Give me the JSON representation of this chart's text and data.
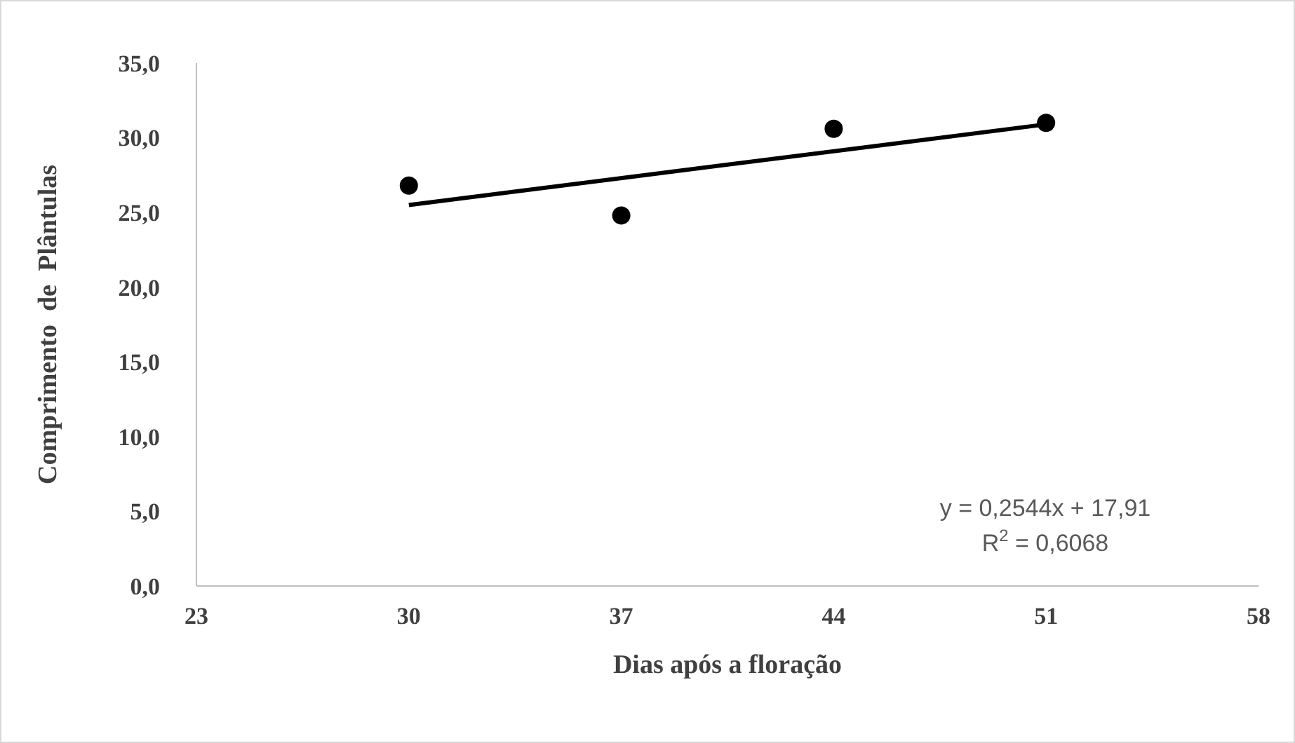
{
  "chart_data": {
    "type": "scatter",
    "xlabel": "Dias após a floração",
    "ylabel": "Comprimento  de  Plântulas",
    "xlim": [
      23,
      58
    ],
    "xticks": [
      23,
      30,
      37,
      44,
      51,
      58
    ],
    "ylim": [
      0,
      35
    ],
    "yticks": [
      {
        "value": 0,
        "label": "0,0"
      },
      {
        "value": 5,
        "label": "5,0"
      },
      {
        "value": 10,
        "label": "10,0"
      },
      {
        "value": 15,
        "label": "15,0"
      },
      {
        "value": 20,
        "label": "20,0"
      },
      {
        "value": 25,
        "label": "25,0"
      },
      {
        "value": 30,
        "label": "30,0"
      },
      {
        "value": 35,
        "label": "35,0"
      }
    ],
    "grid": false,
    "marker": "circle",
    "series": [
      {
        "color": "#000000",
        "x": [
          30,
          37,
          44,
          51
        ],
        "values": [
          26.8,
          24.8,
          30.6,
          31.0
        ]
      },
      {
        "type": "line",
        "color": "#000000",
        "marker": "none",
        "x": [
          30,
          51
        ],
        "values": [
          25.5,
          30.9
        ]
      }
    ],
    "annotations": [
      "y = 0,2544x + 17,91",
      "R$^{2}$ = 0,6068"
    ]
  }
}
